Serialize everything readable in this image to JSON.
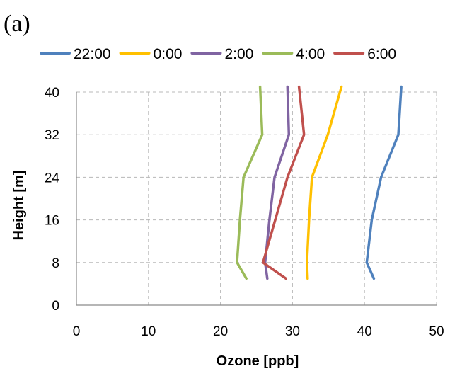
{
  "panel_label": "(a)",
  "chart_data": {
    "type": "line",
    "title": "",
    "xlabel": "Ozone [ppb]",
    "ylabel": "Height [m]",
    "xlim": [
      0,
      50
    ],
    "ylim": [
      0,
      40
    ],
    "x_ticks": [
      0,
      10,
      20,
      30,
      40,
      50
    ],
    "y_ticks": [
      0,
      8,
      16,
      24,
      32,
      40
    ],
    "grid": true,
    "legend_position": "top",
    "series": [
      {
        "name": "22:00",
        "color": "#4F81BD",
        "points": [
          [
            41.3,
            5
          ],
          [
            40.3,
            8
          ],
          [
            41.0,
            16
          ],
          [
            42.3,
            24
          ],
          [
            44.7,
            32
          ],
          [
            45.1,
            41
          ]
        ]
      },
      {
        "name": "0:00",
        "color": "#FFC000",
        "points": [
          [
            32.1,
            5
          ],
          [
            32.0,
            8
          ],
          [
            32.3,
            16
          ],
          [
            32.7,
            24
          ],
          [
            34.9,
            32
          ],
          [
            36.8,
            41
          ]
        ]
      },
      {
        "name": "2:00",
        "color": "#8064A2",
        "points": [
          [
            26.5,
            5
          ],
          [
            26.2,
            8
          ],
          [
            26.8,
            16
          ],
          [
            27.5,
            24
          ],
          [
            29.5,
            32
          ],
          [
            29.3,
            41
          ]
        ]
      },
      {
        "name": "4:00",
        "color": "#9BBB59",
        "points": [
          [
            23.6,
            5
          ],
          [
            22.3,
            8
          ],
          [
            22.7,
            16
          ],
          [
            23.2,
            24
          ],
          [
            25.8,
            32
          ],
          [
            25.5,
            41
          ]
        ]
      },
      {
        "name": "6:00",
        "color": "#C0504D",
        "points": [
          [
            29.1,
            5
          ],
          [
            25.9,
            8
          ],
          [
            27.6,
            16
          ],
          [
            29.3,
            24
          ],
          [
            31.6,
            32
          ],
          [
            30.9,
            41
          ]
        ]
      }
    ]
  }
}
